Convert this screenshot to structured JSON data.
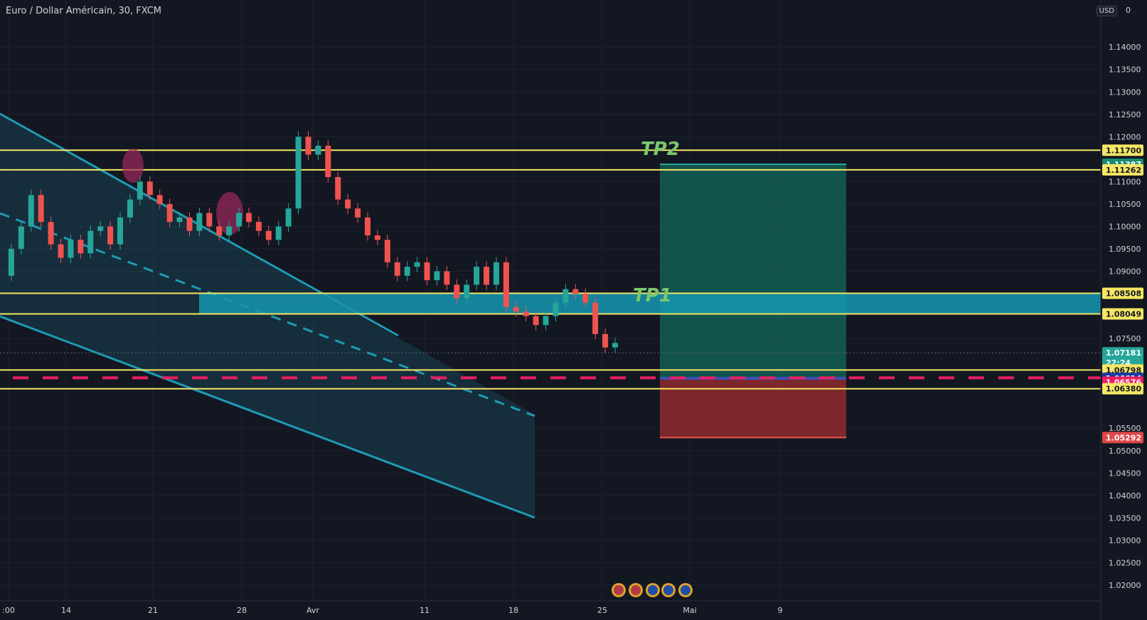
{
  "header": {
    "symbol_title": "Euro / Dollar Américain, 30, FXCM",
    "currency": "USD",
    "currency_suffix": "0"
  },
  "colors": {
    "background": "#131722",
    "grid": "#1e222d",
    "yellow_line": "#f5e663",
    "channel": "#1d9bb5",
    "profit_zone": "#145a52",
    "loss_zone": "#8a2a2e",
    "pink_dash": "#e91e63",
    "candle_up": "#26a69a",
    "candle_down": "#ef5350",
    "tp_text": "#7bc86c"
  },
  "chart_data": {
    "type": "line",
    "title": "Euro / Dollar Américain, 30, FXCM",
    "ylim": [
      1.0165,
      1.1505
    ],
    "grid": true,
    "y_ticks": [
      "1.14000",
      "1.13500",
      "1.13000",
      "1.12500",
      "1.12000",
      "1.11000",
      "1.10500",
      "1.10000",
      "1.09500",
      "1.09000",
      "1.07500",
      "1.05500",
      "1.05000",
      "1.04500",
      "1.04000",
      "1.03500",
      "1.03000",
      "1.02500",
      "1.02000"
    ],
    "x_ticks": [
      ":00",
      "14",
      "21",
      "28",
      "Avr",
      "11",
      "18",
      "25",
      "Mai",
      "9"
    ],
    "series": [
      {
        "values": [
          1.089,
          1.095,
          1.1,
          1.107,
          1.101,
          1.096,
          1.093,
          1.097,
          1.094,
          1.099,
          1.1,
          1.096,
          1.102,
          1.106,
          1.11,
          1.107,
          1.105,
          1.101,
          1.102,
          1.099,
          1.103,
          1.1,
          1.098,
          1.1,
          1.103,
          1.101,
          1.099,
          1.097,
          1.1,
          1.104,
          1.12,
          1.116,
          1.118,
          1.111,
          1.106,
          1.104,
          1.102,
          1.098,
          1.097,
          1.092,
          1.089,
          1.091,
          1.092,
          1.088,
          1.09,
          1.087,
          1.084,
          1.087,
          1.091,
          1.087,
          1.092,
          1.082,
          1.081,
          1.08,
          1.078,
          1.08,
          1.083,
          1.086,
          1.085,
          1.083,
          1.076,
          1.073,
          1.074
        ]
      }
    ],
    "horizontal_levels": [
      {
        "value": 1.117,
        "label": "1.11700"
      },
      {
        "value": 1.11262,
        "label": "1.11262"
      },
      {
        "value": 1.08508,
        "label": "1.08508"
      },
      {
        "value": 1.08049,
        "label": "1.08049"
      },
      {
        "value": 1.06798,
        "label": "1.06798"
      },
      {
        "value": 1.0638,
        "label": "1.06380"
      }
    ],
    "position": {
      "target": 1.11387,
      "entry": 1.06614,
      "stop": 1.05292,
      "target_label": "1.11387",
      "entry_label": "1.06614",
      "stop_label": "1.05292"
    },
    "current_price": {
      "value": 1.07181,
      "label": "1.07181",
      "countdown": "22:24"
    },
    "dashed_level": {
      "value": 1.06576,
      "label": "1.06576"
    },
    "annotations": [
      "TP2",
      "TP1"
    ]
  }
}
